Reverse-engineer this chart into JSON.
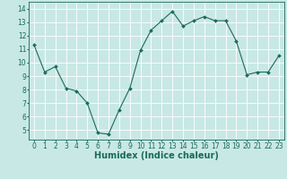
{
  "x": [
    0,
    1,
    2,
    3,
    4,
    5,
    6,
    7,
    8,
    9,
    10,
    11,
    12,
    13,
    14,
    15,
    16,
    17,
    18,
    19,
    20,
    21,
    22,
    23
  ],
  "y": [
    11.3,
    9.3,
    9.7,
    8.1,
    7.9,
    7.0,
    4.8,
    4.7,
    6.5,
    8.1,
    10.9,
    12.4,
    13.1,
    13.8,
    12.7,
    13.1,
    13.4,
    13.1,
    13.1,
    11.6,
    9.1,
    9.3,
    9.3,
    10.5
  ],
  "line_color": "#1a6b5a",
  "marker_color": "#1a6b5a",
  "bg_color": "#c8e8e5",
  "grid_color": "#ffffff",
  "xlabel": "Humidex (Indice chaleur)",
  "xlim": [
    -0.5,
    23.5
  ],
  "ylim": [
    4.3,
    14.5
  ],
  "yticks": [
    5,
    6,
    7,
    8,
    9,
    10,
    11,
    12,
    13,
    14
  ],
  "xticks": [
    0,
    1,
    2,
    3,
    4,
    5,
    6,
    7,
    8,
    9,
    10,
    11,
    12,
    13,
    14,
    15,
    16,
    17,
    18,
    19,
    20,
    21,
    22,
    23
  ],
  "tick_color": "#1a6b5a",
  "label_fontsize": 5.5,
  "xlabel_fontsize": 7.0,
  "axis_color": "#1a6b5a",
  "line_width": 0.8,
  "marker_size": 2.0
}
